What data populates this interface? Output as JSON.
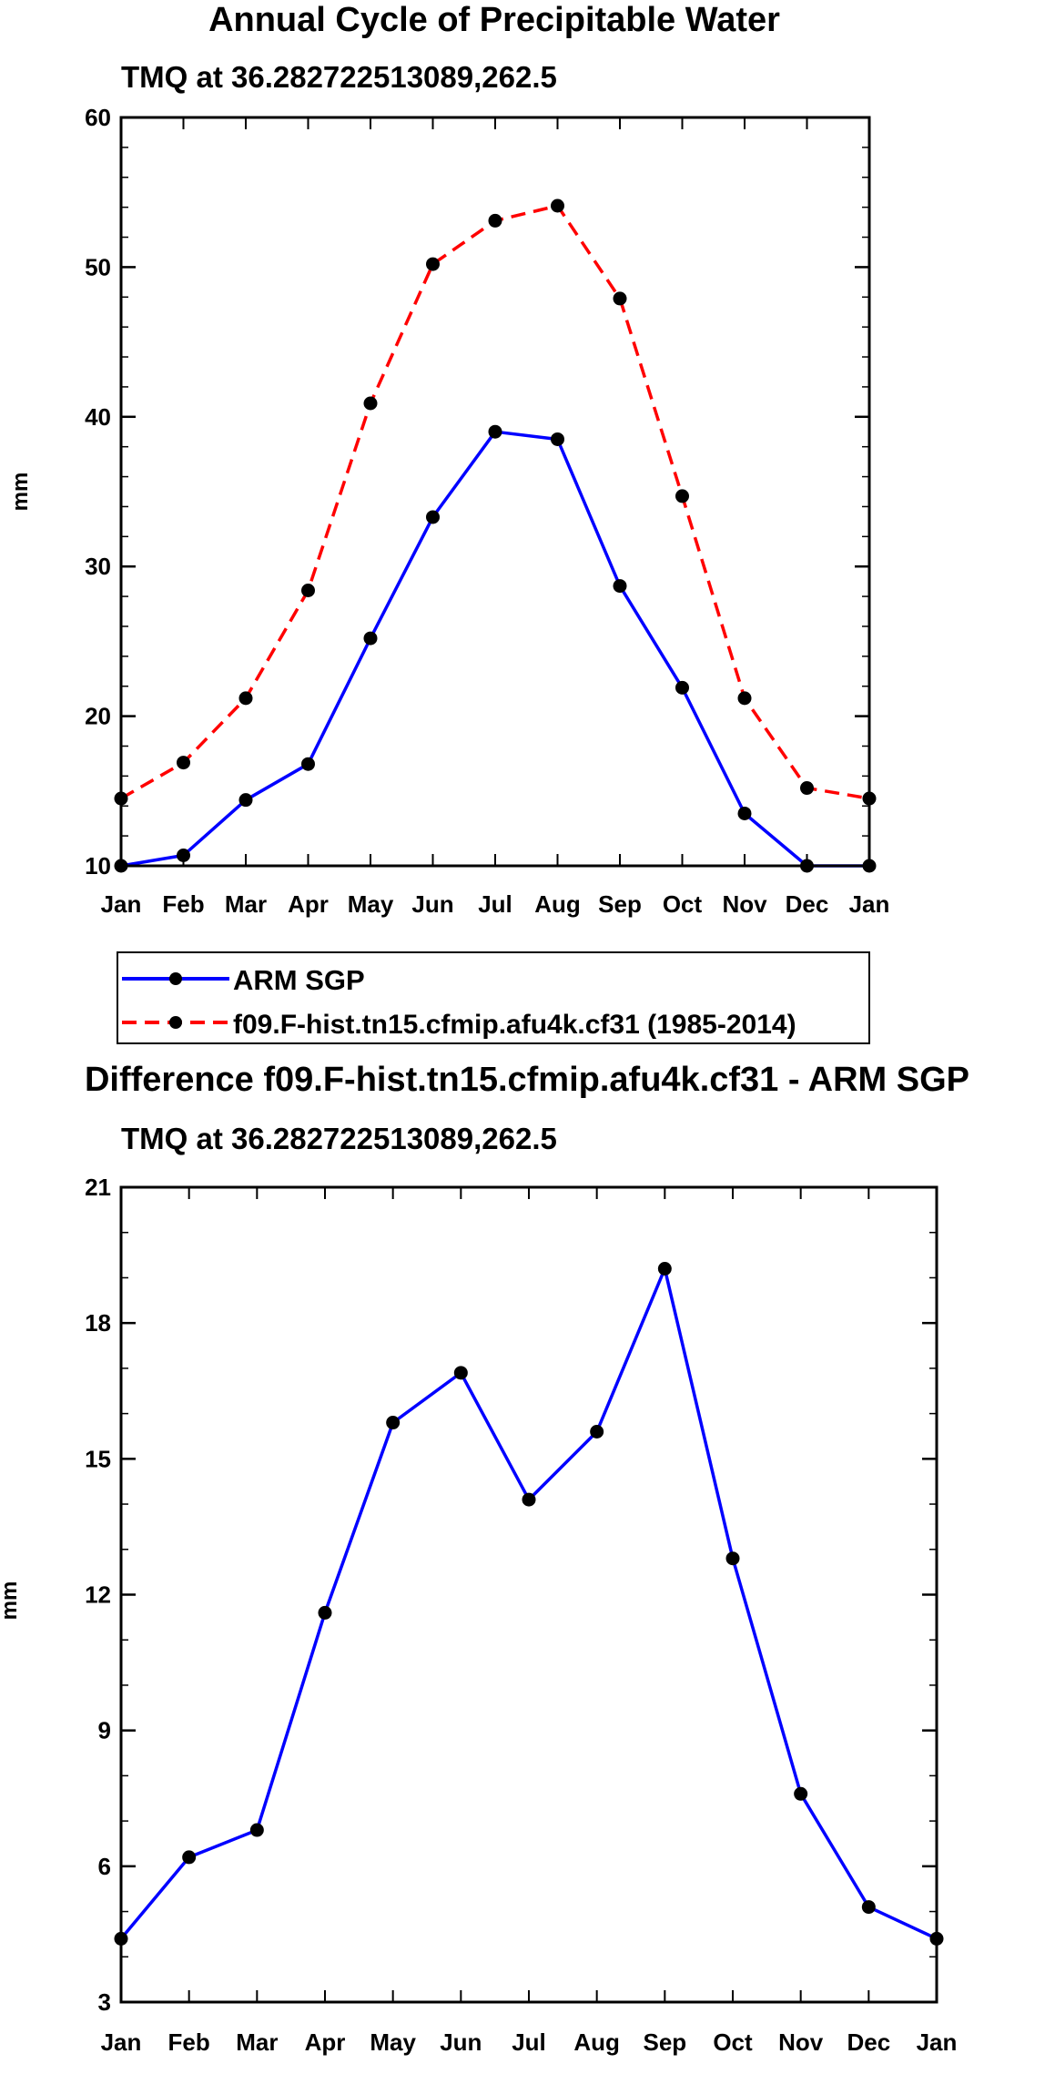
{
  "chart_data": [
    {
      "type": "line",
      "title": "Annual Cycle of Precipitable Water",
      "subtitle": "TMQ at 36.282722513089,262.5",
      "xlabel": "",
      "ylabel": "mm",
      "categories": [
        "Jan",
        "Feb",
        "Mar",
        "Apr",
        "May",
        "Jun",
        "Jul",
        "Aug",
        "Sep",
        "Oct",
        "Nov",
        "Dec",
        "Jan"
      ],
      "ylim": [
        10,
        60
      ],
      "yticks": [
        "10",
        "20",
        "30",
        "40",
        "50",
        "60"
      ],
      "legend_position": "bottom",
      "series": [
        {
          "name": "ARM SGP",
          "color": "#0000ff",
          "dash": "solid",
          "values": [
            10.0,
            10.7,
            14.4,
            16.8,
            25.2,
            33.3,
            39.0,
            38.5,
            28.7,
            21.9,
            13.5,
            10.0,
            10.0
          ]
        },
        {
          "name": "f09.F-hist.tn15.cfmip.afu4k.cf31 (1985-2014)",
          "color": "#ff0000",
          "dash": "dashed",
          "values": [
            14.5,
            16.9,
            21.2,
            28.4,
            40.9,
            50.2,
            53.1,
            54.1,
            47.9,
            34.7,
            21.2,
            15.2,
            14.5
          ]
        }
      ]
    },
    {
      "type": "line",
      "title": "Difference f09.F-hist.tn15.cfmip.afu4k.cf31 - ARM SGP",
      "subtitle": "TMQ at 36.282722513089,262.5",
      "xlabel": "",
      "ylabel": "mm",
      "categories": [
        "Jan",
        "Feb",
        "Mar",
        "Apr",
        "May",
        "Jun",
        "Jul",
        "Aug",
        "Sep",
        "Oct",
        "Nov",
        "Dec",
        "Jan"
      ],
      "ylim": [
        3,
        21
      ],
      "yticks": [
        "3",
        "6",
        "9",
        "12",
        "15",
        "18",
        "21"
      ],
      "series": [
        {
          "name": "Difference",
          "color": "#0000ff",
          "dash": "solid",
          "values": [
            4.4,
            6.2,
            6.8,
            11.6,
            15.8,
            16.9,
            14.1,
            15.6,
            19.2,
            12.8,
            7.6,
            5.1,
            4.4
          ]
        }
      ]
    }
  ]
}
